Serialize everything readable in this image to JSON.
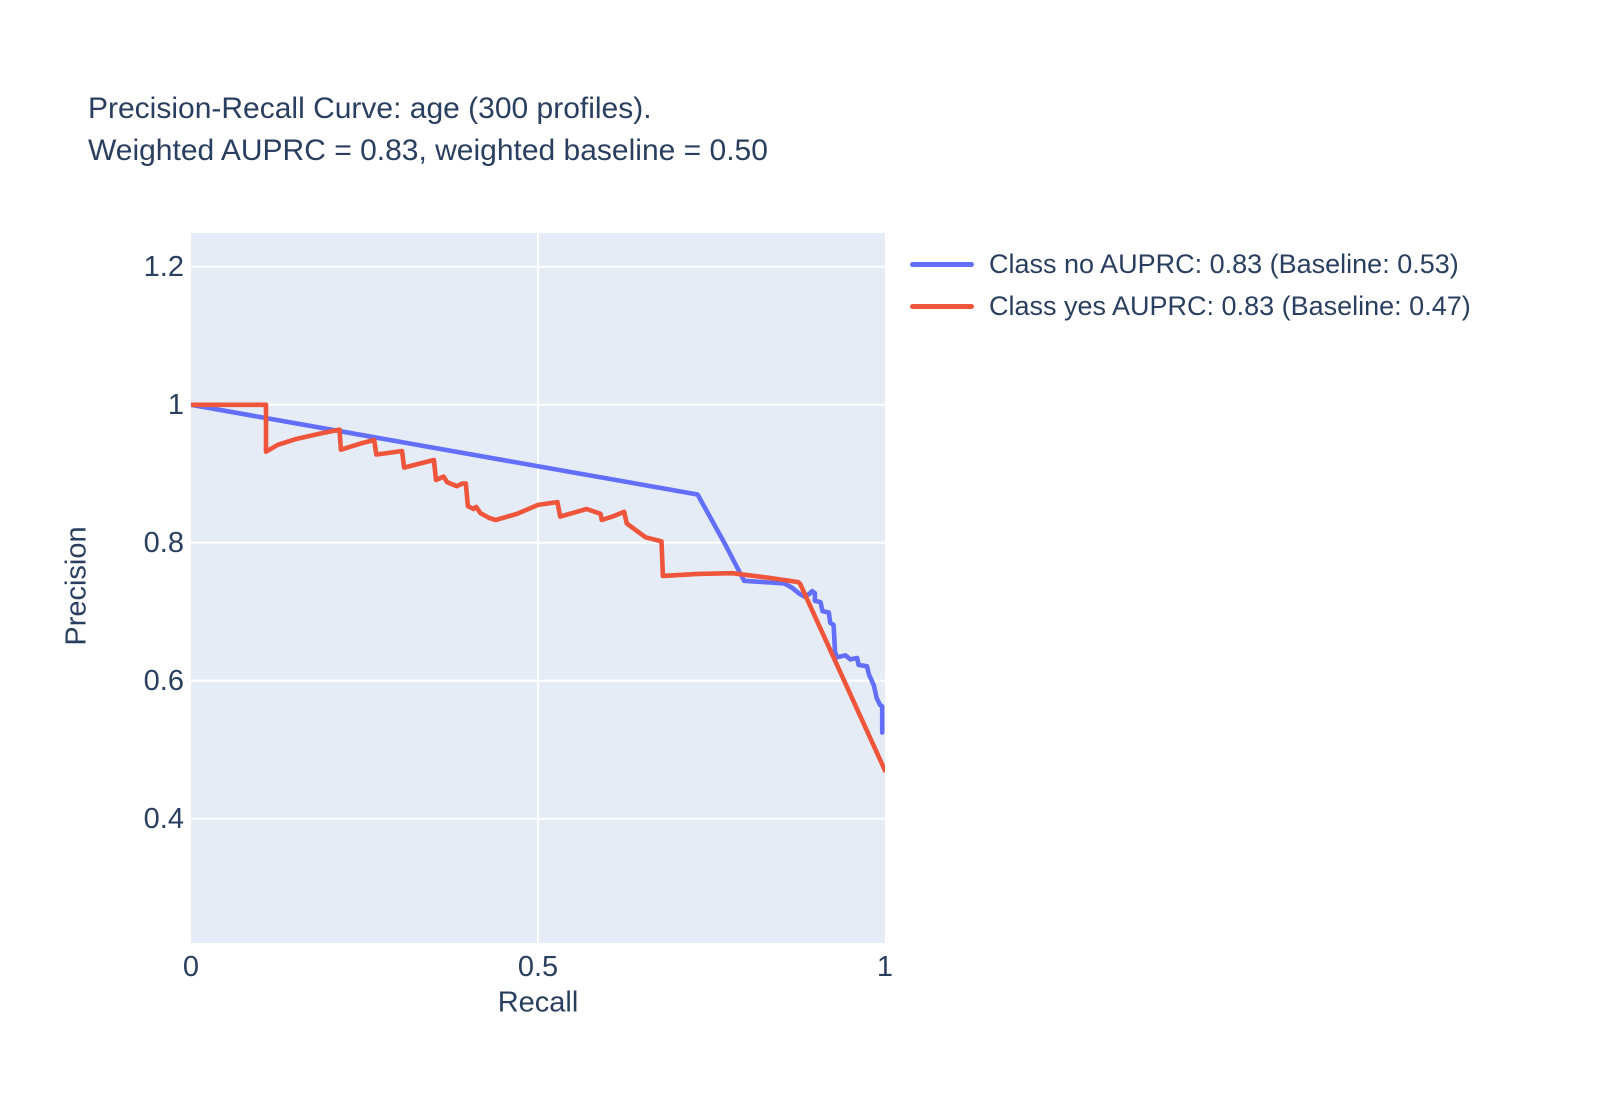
{
  "title": {
    "line1": "Precision-Recall Curve: age (300 profiles).",
    "line2": "Weighted AUPRC = 0.83, weighted baseline = 0.50"
  },
  "axes": {
    "x_label": "Recall",
    "y_label": "Precision"
  },
  "legend": {
    "items": [
      {
        "label": "Class no AUPRC: 0.83 (Baseline: 0.53)",
        "color": "#636EFA"
      },
      {
        "label": "Class yes AUPRC: 0.83 (Baseline: 0.47)",
        "color": "#EF553B"
      }
    ]
  },
  "colors": {
    "text": "#2a3f5f",
    "plot_background": "#E5ECF6",
    "grid": "#ffffff",
    "page_background": "#ffffff",
    "series_blue": "#636EFA",
    "series_red": "#EF553B"
  },
  "chart_data": {
    "type": "line",
    "title": "Precision-Recall Curve: age (300 profiles). Weighted AUPRC = 0.83, weighted baseline = 0.50",
    "xlabel": "Recall",
    "ylabel": "Precision",
    "x_range": [
      0,
      1
    ],
    "y_range": [
      0.22,
      1.249
    ],
    "x_ticks": {
      "values": [
        0,
        0.5,
        1
      ],
      "labels": [
        "0",
        "0.5",
        "1"
      ]
    },
    "y_ticks": {
      "values": [
        0.4,
        0.6,
        0.8,
        1,
        1.2
      ],
      "labels": [
        "0.4",
        "0.6",
        "0.8",
        "1",
        "1.2"
      ]
    },
    "grid": true,
    "legend_position": "right-outside-top",
    "weighted_auprc": 0.83,
    "weighted_baseline": 0.5,
    "series": [
      {
        "name": "Class no AUPRC: 0.83 (Baseline: 0.53)",
        "auprc": 0.83,
        "baseline": 0.53,
        "color": "#636EFA",
        "points": [
          [
            0.0,
            1.0
          ],
          [
            0.73,
            0.87
          ],
          [
            0.769,
            0.799
          ],
          [
            0.797,
            0.745
          ],
          [
            0.855,
            0.741
          ],
          [
            0.866,
            0.735
          ],
          [
            0.877,
            0.726
          ],
          [
            0.884,
            0.722
          ],
          [
            0.891,
            0.726
          ],
          [
            0.895,
            0.73
          ],
          [
            0.899,
            0.727
          ],
          [
            0.899,
            0.716
          ],
          [
            0.907,
            0.714
          ],
          [
            0.91,
            0.701
          ],
          [
            0.919,
            0.699
          ],
          [
            0.921,
            0.684
          ],
          [
            0.926,
            0.681
          ],
          [
            0.928,
            0.642
          ],
          [
            0.931,
            0.634
          ],
          [
            0.943,
            0.637
          ],
          [
            0.95,
            0.631
          ],
          [
            0.96,
            0.633
          ],
          [
            0.962,
            0.623
          ],
          [
            0.974,
            0.621
          ],
          [
            0.977,
            0.609
          ],
          [
            0.984,
            0.593
          ],
          [
            0.988,
            0.575
          ],
          [
            0.993,
            0.565
          ],
          [
            0.996,
            0.563
          ],
          [
            0.996,
            0.525
          ]
        ]
      },
      {
        "name": "Class yes AUPRC: 0.83 (Baseline: 0.47)",
        "auprc": 0.83,
        "baseline": 0.47,
        "color": "#EF553B",
        "points": [
          [
            0.0,
            1.0
          ],
          [
            0.108,
            1.0
          ],
          [
            0.108,
            0.932
          ],
          [
            0.125,
            0.942
          ],
          [
            0.15,
            0.95
          ],
          [
            0.185,
            0.958
          ],
          [
            0.214,
            0.964
          ],
          [
            0.216,
            0.935
          ],
          [
            0.245,
            0.944
          ],
          [
            0.264,
            0.949
          ],
          [
            0.267,
            0.928
          ],
          [
            0.29,
            0.931
          ],
          [
            0.304,
            0.933
          ],
          [
            0.307,
            0.909
          ],
          [
            0.33,
            0.915
          ],
          [
            0.35,
            0.92
          ],
          [
            0.353,
            0.891
          ],
          [
            0.364,
            0.896
          ],
          [
            0.369,
            0.888
          ],
          [
            0.383,
            0.882
          ],
          [
            0.391,
            0.886
          ],
          [
            0.396,
            0.886
          ],
          [
            0.399,
            0.853
          ],
          [
            0.407,
            0.849
          ],
          [
            0.411,
            0.852
          ],
          [
            0.417,
            0.843
          ],
          [
            0.43,
            0.836
          ],
          [
            0.439,
            0.833
          ],
          [
            0.47,
            0.842
          ],
          [
            0.5,
            0.855
          ],
          [
            0.528,
            0.859
          ],
          [
            0.532,
            0.838
          ],
          [
            0.57,
            0.849
          ],
          [
            0.59,
            0.842
          ],
          [
            0.592,
            0.833
          ],
          [
            0.61,
            0.839
          ],
          [
            0.624,
            0.845
          ],
          [
            0.628,
            0.828
          ],
          [
            0.655,
            0.808
          ],
          [
            0.678,
            0.802
          ],
          [
            0.68,
            0.752
          ],
          [
            0.73,
            0.755
          ],
          [
            0.78,
            0.756
          ],
          [
            0.835,
            0.749
          ],
          [
            0.875,
            0.743
          ],
          [
            0.878,
            0.74
          ],
          [
            1.0,
            0.47
          ]
        ]
      }
    ]
  }
}
